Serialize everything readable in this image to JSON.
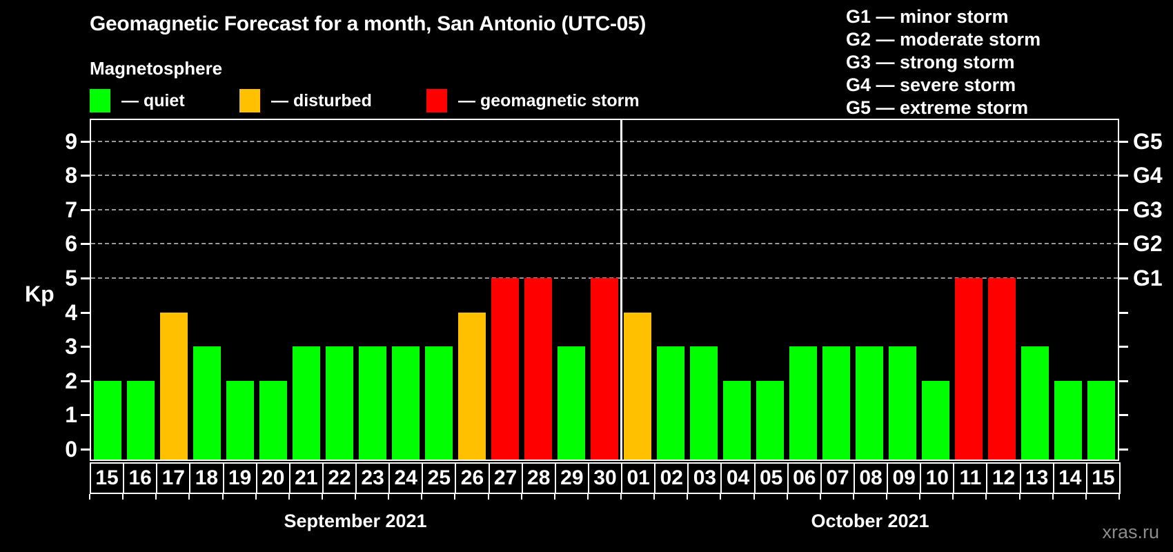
{
  "page": {
    "title": "Geomagnetic Forecast for a month, San Antonio (UTC-05)",
    "subtitle": "Magnetosphere",
    "watermark": "xras.ru"
  },
  "legend": {
    "items": [
      {
        "status": "quiet",
        "label": "— quiet",
        "color": "#00ff00"
      },
      {
        "status": "disturbed",
        "label": "— disturbed",
        "color": "#ffc000"
      },
      {
        "status": "storm",
        "label": "— geomagnetic storm",
        "color": "#ff0000"
      }
    ]
  },
  "g_scale_legend": {
    "lines": [
      "G1 — minor storm",
      "G2 — moderate storm",
      "G3 — strong storm",
      "G4 — severe storm",
      "G5 — extreme storm"
    ]
  },
  "chart_data": {
    "type": "bar",
    "title": "Geomagnetic Forecast for a month, San Antonio (UTC-05)",
    "subtitle": "Magnetosphere",
    "ylabel": "Kp",
    "ylim": [
      0,
      9
    ],
    "y_ticks": [
      0,
      1,
      2,
      3,
      4,
      5,
      6,
      7,
      8,
      9
    ],
    "gridline_kp": [
      5,
      6,
      7,
      8,
      9
    ],
    "right_axis": [
      {
        "kp": 5,
        "label": "G1"
      },
      {
        "kp": 6,
        "label": "G2"
      },
      {
        "kp": 7,
        "label": "G3"
      },
      {
        "kp": 8,
        "label": "G4"
      },
      {
        "kp": 9,
        "label": "G5"
      }
    ],
    "status_colors": {
      "quiet": "#00ff00",
      "disturbed": "#ffc000",
      "storm": "#ff0000"
    },
    "grid_color": "#9a9a9a",
    "months": [
      {
        "label": "September 2021",
        "days": [
          {
            "day": "15",
            "kp": 2,
            "status": "quiet"
          },
          {
            "day": "16",
            "kp": 2,
            "status": "quiet"
          },
          {
            "day": "17",
            "kp": 4,
            "status": "disturbed"
          },
          {
            "day": "18",
            "kp": 3,
            "status": "quiet"
          },
          {
            "day": "19",
            "kp": 2,
            "status": "quiet"
          },
          {
            "day": "20",
            "kp": 2,
            "status": "quiet"
          },
          {
            "day": "21",
            "kp": 3,
            "status": "quiet"
          },
          {
            "day": "22",
            "kp": 3,
            "status": "quiet"
          },
          {
            "day": "23",
            "kp": 3,
            "status": "quiet"
          },
          {
            "day": "24",
            "kp": 3,
            "status": "quiet"
          },
          {
            "day": "25",
            "kp": 3,
            "status": "quiet"
          },
          {
            "day": "26",
            "kp": 4,
            "status": "disturbed"
          },
          {
            "day": "27",
            "kp": 5,
            "status": "storm"
          },
          {
            "day": "28",
            "kp": 5,
            "status": "storm"
          },
          {
            "day": "29",
            "kp": 3,
            "status": "quiet"
          },
          {
            "day": "30",
            "kp": 5,
            "status": "storm"
          }
        ]
      },
      {
        "label": "October 2021",
        "days": [
          {
            "day": "01",
            "kp": 4,
            "status": "disturbed"
          },
          {
            "day": "02",
            "kp": 3,
            "status": "quiet"
          },
          {
            "day": "03",
            "kp": 3,
            "status": "quiet"
          },
          {
            "day": "04",
            "kp": 2,
            "status": "quiet"
          },
          {
            "day": "05",
            "kp": 2,
            "status": "quiet"
          },
          {
            "day": "06",
            "kp": 3,
            "status": "quiet"
          },
          {
            "day": "07",
            "kp": 3,
            "status": "quiet"
          },
          {
            "day": "08",
            "kp": 3,
            "status": "quiet"
          },
          {
            "day": "09",
            "kp": 3,
            "status": "quiet"
          },
          {
            "day": "10",
            "kp": 2,
            "status": "quiet"
          },
          {
            "day": "11",
            "kp": 5,
            "status": "storm"
          },
          {
            "day": "12",
            "kp": 5,
            "status": "storm"
          },
          {
            "day": "13",
            "kp": 3,
            "status": "quiet"
          },
          {
            "day": "14",
            "kp": 2,
            "status": "quiet"
          },
          {
            "day": "15",
            "kp": 2,
            "status": "quiet"
          }
        ]
      }
    ]
  }
}
